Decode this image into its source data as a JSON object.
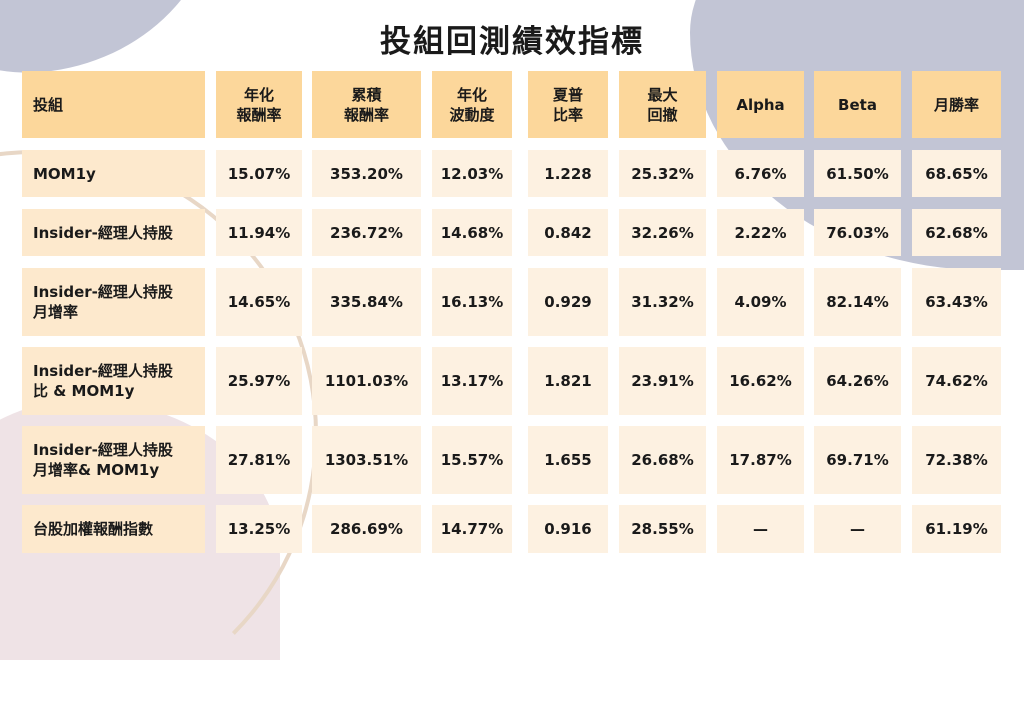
{
  "title": "投組回測績效指標",
  "colors": {
    "header_bg": "#fcd79b",
    "name_bg": "#fde9cd",
    "value_bg": "#fdf1e1",
    "shape_blue": "#c2c5d5",
    "shape_pink": "#efe3e6"
  },
  "table": {
    "headers": [
      "投組",
      "年化\n報酬率",
      "累積\n報酬率",
      "年化\n波動度",
      "夏普\n比率",
      "最大\n回撤",
      "Alpha",
      "Beta",
      "月勝率"
    ],
    "rows": [
      {
        "name": "MOM1y",
        "values": [
          "15.07%",
          "353.20%",
          "12.03%",
          "1.228",
          "25.32%",
          "6.76%",
          "61.50%",
          "68.65%"
        ]
      },
      {
        "name": "Insider-經理人持股",
        "values": [
          "11.94%",
          "236.72%",
          "14.68%",
          "0.842",
          "32.26%",
          "2.22%",
          "76.03%",
          "62.68%"
        ]
      },
      {
        "name": "Insider-經理人持股\n月增率",
        "values": [
          "14.65%",
          "335.84%",
          "16.13%",
          "0.929",
          "31.32%",
          "4.09%",
          "82.14%",
          "63.43%"
        ]
      },
      {
        "name": "Insider-經理人持股\n比 & MOM1y",
        "values": [
          "25.97%",
          "1101.03%",
          "13.17%",
          "1.821",
          "23.91%",
          "16.62%",
          "64.26%",
          "74.62%"
        ]
      },
      {
        "name": "Insider-經理人持股\n月增率& MOM1y",
        "values": [
          "27.81%",
          "1303.51%",
          "15.57%",
          "1.655",
          "26.68%",
          "17.87%",
          "69.71%",
          "72.38%"
        ]
      },
      {
        "name": "台股加權報酬指數",
        "values": [
          "13.25%",
          "286.69%",
          "14.77%",
          "0.916",
          "28.55%",
          "—",
          "—",
          "61.19%"
        ]
      }
    ]
  },
  "chart_data": {
    "type": "table",
    "title": "投組回測績效指標",
    "columns": [
      "投組",
      "年化報酬率",
      "累積報酬率",
      "年化波動度",
      "夏普比率",
      "最大回撤",
      "Alpha",
      "Beta",
      "月勝率"
    ],
    "rows": [
      [
        "MOM1y",
        "15.07%",
        "353.20%",
        "12.03%",
        "1.228",
        "25.32%",
        "6.76%",
        "61.50%",
        "68.65%"
      ],
      [
        "Insider-經理人持股",
        "11.94%",
        "236.72%",
        "14.68%",
        "0.842",
        "32.26%",
        "2.22%",
        "76.03%",
        "62.68%"
      ],
      [
        "Insider-經理人持股月增率",
        "14.65%",
        "335.84%",
        "16.13%",
        "0.929",
        "31.32%",
        "4.09%",
        "82.14%",
        "63.43%"
      ],
      [
        "Insider-經理人持股比 & MOM1y",
        "25.97%",
        "1101.03%",
        "13.17%",
        "1.821",
        "23.91%",
        "16.62%",
        "64.26%",
        "74.62%"
      ],
      [
        "Insider-經理人持股月增率& MOM1y",
        "27.81%",
        "1303.51%",
        "15.57%",
        "1.655",
        "26.68%",
        "17.87%",
        "69.71%",
        "72.38%"
      ],
      [
        "台股加權報酬指數",
        "13.25%",
        "286.69%",
        "14.77%",
        "0.916",
        "28.55%",
        "—",
        "—",
        "61.19%"
      ]
    ]
  }
}
